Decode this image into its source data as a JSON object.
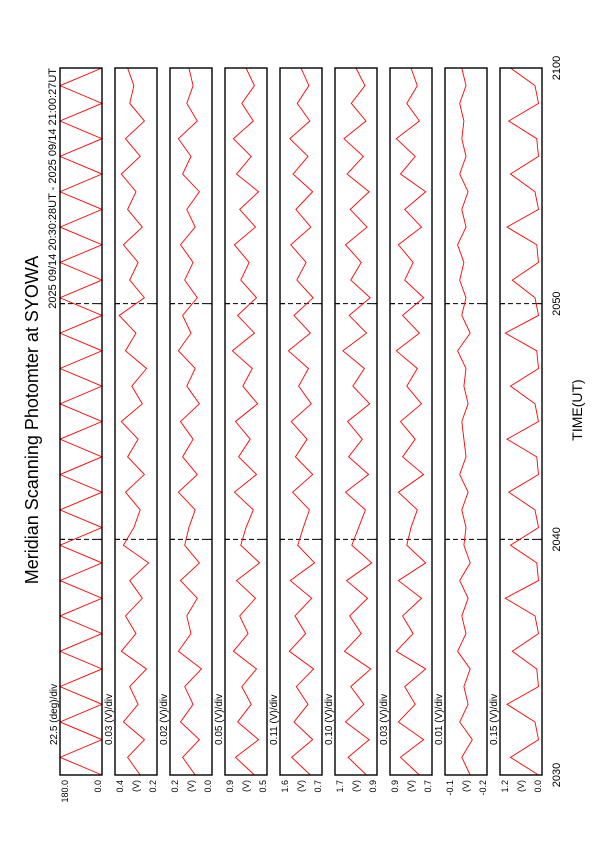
{
  "title": "Meridian Scanning Photomter at SYOWA",
  "subtitle": "2025 09/14 20:30:28UT - 2025 09/14 21:00:27UT",
  "xlabel": "TIME(UT)",
  "x": [
    30,
    30.75,
    31.5,
    32.25,
    33,
    33.75,
    34.5,
    35.25,
    36,
    36.75,
    37.5,
    38.25,
    39,
    39.75,
    40.5,
    41.25,
    42,
    42.75,
    43.5,
    44.25,
    45,
    45.75,
    46.5,
    47.25,
    48,
    48.75,
    49.5,
    50.25,
    51,
    51.75,
    52.5,
    53.25,
    54,
    54.75,
    55.5,
    56.25,
    57,
    57.75,
    58.5,
    59.25,
    60
  ],
  "xlim": [
    30,
    60
  ],
  "xticks": [
    {
      "value": 30,
      "label": "2030"
    },
    {
      "value": 40,
      "label": "2040"
    },
    {
      "value": 50,
      "label": "2050"
    },
    {
      "value": 60,
      "label": "2100"
    }
  ],
  "grid": true,
  "chart_data": [
    {
      "type": "line",
      "scale_label": "22.5 (deg)/div",
      "color": "#ff0000",
      "ylim": [
        0,
        180
      ],
      "yticks": [
        {
          "value": 180,
          "label": "180.0"
        },
        {
          "value": 0,
          "label": "0.0"
        }
      ],
      "values": [
        0,
        180,
        0,
        180,
        0,
        180,
        0,
        180,
        0,
        180,
        0,
        180,
        0,
        180,
        0,
        180,
        0,
        180,
        0,
        180,
        0,
        180,
        0,
        180,
        0,
        180,
        0,
        180,
        0,
        180,
        0,
        180,
        0,
        180,
        0,
        180,
        0,
        180,
        0,
        180,
        0
      ]
    },
    {
      "type": "line",
      "scale_label": "0.03 (V)/div",
      "ylabel": "(V)",
      "color": "#ff0000",
      "ylim": [
        0.2,
        0.4
      ],
      "yticks": [
        0.4,
        0.2
      ],
      "values": [
        0.28,
        0.34,
        0.26,
        0.36,
        0.29,
        0.33,
        0.25,
        0.37,
        0.3,
        0.35,
        0.27,
        0.33,
        0.24,
        0.36,
        0.31,
        0.28,
        0.35,
        0.26,
        0.34,
        0.29,
        0.37,
        0.27,
        0.32,
        0.25,
        0.35,
        0.3,
        0.38,
        0.26,
        0.33,
        0.29,
        0.36,
        0.27,
        0.34,
        0.3,
        0.37,
        0.28,
        0.35,
        0.26,
        0.33,
        0.31,
        0.34
      ]
    },
    {
      "type": "line",
      "scale_label": "0.02 (V)/div",
      "ylabel": "(V)",
      "color": "#ff0000",
      "ylim": [
        0,
        0.2
      ],
      "yticks": [
        0.2,
        {
          "value": 0,
          "label": "0.0"
        }
      ],
      "values": [
        0.08,
        0.14,
        0.06,
        0.15,
        0.09,
        0.13,
        0.05,
        0.16,
        0.1,
        0.12,
        0.07,
        0.15,
        0.06,
        0.13,
        0.11,
        0.08,
        0.16,
        0.07,
        0.14,
        0.09,
        0.15,
        0.06,
        0.12,
        0.08,
        0.16,
        0.1,
        0.14,
        0.07,
        0.13,
        0.09,
        0.15,
        0.08,
        0.12,
        0.06,
        0.14,
        0.1,
        0.16,
        0.07,
        0.12,
        0.09,
        0.11
      ]
    },
    {
      "type": "line",
      "scale_label": "0.05 (V)/div",
      "ylabel": "(V)",
      "color": "#ff0000",
      "ylim": [
        0.5,
        0.9
      ],
      "yticks": [
        0.9,
        0.5
      ],
      "values": [
        0.62,
        0.8,
        0.58,
        0.78,
        0.65,
        0.74,
        0.6,
        0.82,
        0.68,
        0.76,
        0.61,
        0.79,
        0.57,
        0.75,
        0.7,
        0.63,
        0.81,
        0.6,
        0.77,
        0.66,
        0.8,
        0.59,
        0.73,
        0.64,
        0.83,
        0.62,
        0.78,
        0.6,
        0.75,
        0.67,
        0.81,
        0.61,
        0.76,
        0.58,
        0.79,
        0.65,
        0.82,
        0.63,
        0.74,
        0.62,
        0.7
      ]
    },
    {
      "type": "line",
      "scale_label": "0.11 (V)/div",
      "ylabel": "(V)",
      "color": "#ff0000",
      "ylim": [
        0.7,
        1.6
      ],
      "yticks": [
        1.6,
        0.7
      ],
      "values": [
        0.95,
        1.35,
        0.9,
        1.3,
        1.0,
        1.25,
        0.88,
        1.4,
        1.05,
        1.28,
        0.92,
        1.38,
        0.86,
        1.22,
        1.1,
        0.97,
        1.33,
        0.9,
        1.27,
        1.02,
        1.36,
        0.93,
        1.2,
        0.99,
        1.42,
        0.95,
        1.3,
        0.89,
        1.24,
        1.04,
        1.37,
        0.94,
        1.26,
        0.9,
        1.32,
        1.0,
        1.39,
        0.96,
        1.23,
        0.98,
        1.15
      ]
    },
    {
      "type": "line",
      "scale_label": "0.10 (V)/div",
      "ylabel": "(V)",
      "color": "#ff0000",
      "ylim": [
        0.9,
        1.7
      ],
      "yticks": [
        1.7,
        0.9
      ],
      "values": [
        1.1,
        1.45,
        1.05,
        1.5,
        1.15,
        1.4,
        1.02,
        1.52,
        1.2,
        1.42,
        1.08,
        1.48,
        1.0,
        1.38,
        1.25,
        1.12,
        1.5,
        1.06,
        1.44,
        1.18,
        1.46,
        1.04,
        1.36,
        1.14,
        1.55,
        1.1,
        1.43,
        1.03,
        1.4,
        1.2,
        1.5,
        1.09,
        1.41,
        1.05,
        1.47,
        1.16,
        1.53,
        1.11,
        1.39,
        1.13,
        1.3
      ]
    },
    {
      "type": "line",
      "scale_label": "0.03 (V)/div",
      "ylabel": "(V)",
      "color": "#ff0000",
      "ylim": [
        0.7,
        0.9
      ],
      "yticks": [
        0.9,
        0.7
      ],
      "values": [
        0.76,
        0.85,
        0.74,
        0.86,
        0.78,
        0.83,
        0.73,
        0.87,
        0.79,
        0.84,
        0.75,
        0.86,
        0.73,
        0.82,
        0.8,
        0.77,
        0.86,
        0.74,
        0.84,
        0.78,
        0.85,
        0.75,
        0.82,
        0.77,
        0.87,
        0.76,
        0.84,
        0.74,
        0.83,
        0.79,
        0.86,
        0.75,
        0.83,
        0.73,
        0.85,
        0.78,
        0.87,
        0.76,
        0.82,
        0.77,
        0.8
      ]
    },
    {
      "type": "line",
      "scale_label": "0.01 (V)/div",
      "ylabel": "(V)",
      "color": "#ff0000",
      "ylim": [
        -0.2,
        -0.1
      ],
      "yticks": [
        -0.1,
        -0.2
      ],
      "values": [
        -0.16,
        -0.14,
        -0.165,
        -0.135,
        -0.155,
        -0.145,
        -0.16,
        -0.13,
        -0.15,
        -0.14,
        -0.155,
        -0.135,
        -0.16,
        -0.145,
        -0.15,
        -0.14,
        -0.155,
        -0.135,
        -0.15,
        -0.145,
        -0.14,
        -0.155,
        -0.145,
        -0.15,
        -0.13,
        -0.16,
        -0.14,
        -0.15,
        -0.135,
        -0.145,
        -0.13,
        -0.15,
        -0.14,
        -0.155,
        -0.135,
        -0.15,
        -0.14,
        -0.145,
        -0.135,
        -0.15,
        -0.14
      ]
    },
    {
      "type": "line",
      "scale_label": "0.15 (V)/div",
      "ylabel": "(V)",
      "color": "#ff0000",
      "ylim": [
        0,
        1.2
      ],
      "yticks": [
        1.2,
        {
          "value": 0,
          "label": "0.0"
        }
      ],
      "values": [
        0.1,
        0.9,
        0.1,
        0.2,
        1.0,
        0.1,
        0.15,
        0.85,
        0.1,
        0.2,
        1.05,
        0.1,
        0.15,
        0.9,
        0.1,
        0.2,
        0.95,
        0.1,
        0.15,
        1.0,
        0.1,
        0.2,
        0.9,
        0.1,
        0.15,
        1.05,
        0.1,
        0.2,
        0.85,
        0.1,
        0.15,
        1.0,
        0.1,
        0.2,
        0.9,
        0.1,
        0.15,
        0.95,
        0.1,
        0.2,
        0.9
      ]
    }
  ]
}
